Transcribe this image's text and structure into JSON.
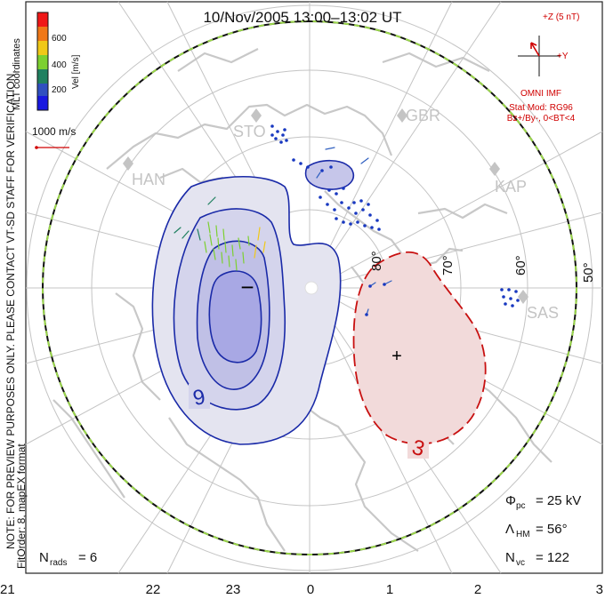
{
  "title": "10/Nov/2005 13:00–13:02 UT",
  "colors": {
    "positive_cell": "#c81010",
    "negative_cell": "#1a2aa8",
    "convection_boundary": "#111111",
    "boundary_dash": "#9ad64a"
  },
  "left_note": {
    "line1": "NOTE: FOR PREVIEW PURPOSES ONLY. PLEASE CONTACT VT-SD STAFF FOR VERIFICATION.",
    "line2": "FitOrder: 8, mapEX format",
    "coords": "MLT coordinates"
  },
  "velocity_scale": {
    "label": "Vel [m/s]",
    "ticks": [
      "600",
      "400",
      "200"
    ],
    "colors": [
      "#f01818",
      "#f07818",
      "#f0c818",
      "#7cd030",
      "#208060",
      "#3050c0",
      "#1818e0"
    ],
    "reference": "1000 m/s"
  },
  "imf": {
    "z_label": "+Z (5 nT)",
    "y_label": "+Y",
    "source": "OMNI IMF",
    "model": "Stat Mod: RG96",
    "condition": "Bz+/By-, 0<BT<4"
  },
  "stations": [
    {
      "code": "STO"
    },
    {
      "code": "GBR"
    },
    {
      "code": "HAN"
    },
    {
      "code": "KAP"
    },
    {
      "code": "SAS"
    }
  ],
  "cells": {
    "negative_label": "−",
    "negative_value": "9",
    "positive_label": "+",
    "positive_value": "3"
  },
  "lat_labels": [
    "80°",
    "70°",
    "60°",
    "50°"
  ],
  "stats": {
    "phi_sym": "Φ",
    "phi_sub": "pc",
    "phi_val": "= 25 kV",
    "lam_sym": "Λ",
    "lam_sub": "HM",
    "lam_val": "= 56°",
    "nvc_sym": "N",
    "nvc_sub": "vc",
    "nvc_val": "= 122",
    "nrads_sym": "N",
    "nrads_sub": "rads",
    "nrads_val": "= 6"
  },
  "chart_data": {
    "type": "polar convection map",
    "mlt_ticks": [
      "21",
      "22",
      "23",
      "0",
      "1",
      "2",
      "3"
    ],
    "latitude_circles": [
      80,
      70,
      60,
      50
    ],
    "cross_polar_cap_potential_kV": 25,
    "hm_boundary_lat_deg": 56,
    "n_vectors": 122,
    "n_radars": 6,
    "negative_cell_contour_kV": -9,
    "positive_cell_contour_kV": 3
  }
}
